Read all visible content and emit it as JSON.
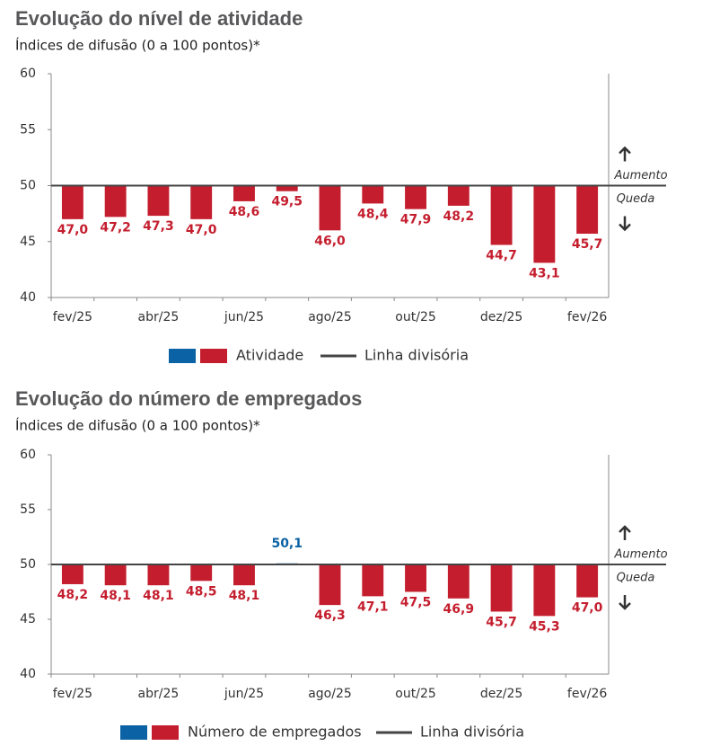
{
  "chart_data": [
    {
      "type": "bar",
      "title": "Evolução do nível de atividade",
      "subtitle": "Índices de difusão (0 a 100 pontos)*",
      "categories": [
        "fev/25",
        null,
        "abr/25",
        null,
        "jun/25",
        null,
        "ago/25",
        null,
        "out/25",
        null,
        "dez/25",
        null,
        "fev/26"
      ],
      "series": [
        {
          "name": "Atividade",
          "color": "#c41e2e",
          "color_above": "#0b62a4",
          "values": [
            47.0,
            47.2,
            47.3,
            47.0,
            48.6,
            49.5,
            46.0,
            48.4,
            47.9,
            48.2,
            44.7,
            43.1,
            45.7
          ],
          "value_labels": [
            "47,0",
            "47,2",
            "47,3",
            "47,0",
            "48,6",
            "49,5",
            "46,0",
            "48,4",
            "47,9",
            "48,2",
            "44,7",
            "43,1",
            "45,7"
          ]
        }
      ],
      "baseline": 50,
      "baseline_label": "Linha divisória",
      "annotations": {
        "up": "Aumento",
        "down": "Queda"
      },
      "ylim": [
        40,
        60
      ],
      "yticks": [
        40,
        45,
        50,
        55,
        60
      ]
    },
    {
      "type": "bar",
      "title": "Evolução do número de empregados",
      "subtitle": "Índices de difusão (0 a 100 pontos)*",
      "categories": [
        "fev/25",
        null,
        "abr/25",
        null,
        "jun/25",
        null,
        "ago/25",
        null,
        "out/25",
        null,
        "dez/25",
        null,
        "fev/26"
      ],
      "series": [
        {
          "name": "Número de empregados",
          "color": "#c41e2e",
          "color_above": "#0b62a4",
          "values": [
            48.2,
            48.1,
            48.1,
            48.5,
            48.1,
            50.1,
            46.3,
            47.1,
            47.5,
            46.9,
            45.7,
            45.3,
            47.0
          ],
          "value_labels": [
            "48,2",
            "48,1",
            "48,1",
            "48,5",
            "48,1",
            "50,1",
            "46,3",
            "47,1",
            "47,5",
            "46,9",
            "45,7",
            "45,3",
            "47,0"
          ]
        }
      ],
      "baseline": 50,
      "baseline_label": "Linha divisória",
      "annotations": {
        "up": "Aumento",
        "down": "Queda"
      },
      "ylim": [
        40,
        60
      ],
      "yticks": [
        40,
        45,
        50,
        55,
        60
      ]
    }
  ]
}
